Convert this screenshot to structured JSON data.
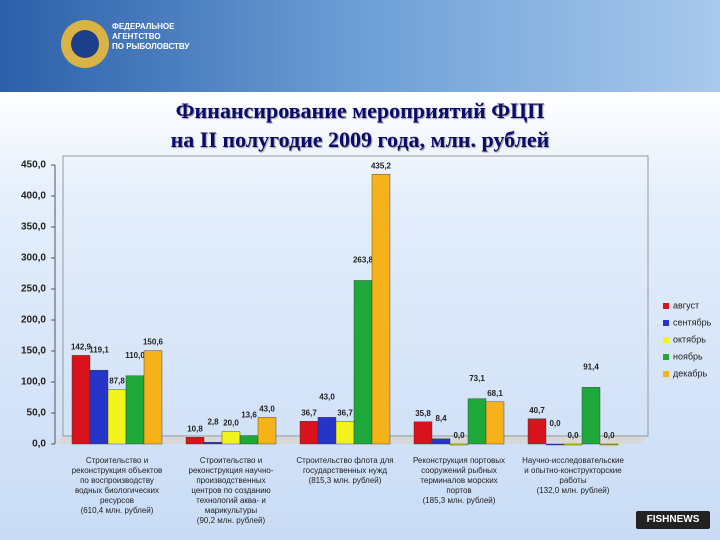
{
  "header": {
    "agency": "ФЕДЕРАЛЬНОЕ\nАГЕНТСТВО\nПО РЫБОЛОВСТВУ",
    "badge": "FISHNEWS"
  },
  "chart_data": {
    "type": "bar",
    "title": "Финансирование мероприятий ФЦП\nна II полугодие 2009 года, млн. рублей",
    "categories": [
      "Строительство и\nреконструкция объектов\nпо воспроизводству\nводных биологических\nресурсов\n(610,4 млн. рублей)",
      "Строительство и\nреконструкция научно-\nпроизводственных\nцентров по созданию\nтехнологий аква- и\nмарикультуры\n(90,2 млн. рублей)",
      "Строительство флота для\nгосударственных нужд\n(815,3 млн. рублей)",
      "Реконструкция портовых\nсооружений рыбных\nтерминалов морских\nпортов\n(185,3 млн. рублей)",
      "Научно-исследовательские\nи опытно-конструкторские\nработы\n(132,0 млн. рублей)"
    ],
    "series": [
      {
        "name": "август",
        "color": "#d9131b",
        "values": [
          142.9,
          10.8,
          36.7,
          35.8,
          40.7
        ],
        "value_labels": [
          "142,9",
          "10,8",
          "36,7",
          "35,8",
          "40,7"
        ]
      },
      {
        "name": "сентябрь",
        "color": "#2634c8",
        "values": [
          119.1,
          2.8,
          43.0,
          8.4,
          0.0
        ],
        "value_labels": [
          "119,1",
          "2,8",
          "43,0",
          "8,4",
          "0,0"
        ]
      },
      {
        "name": "октябрь",
        "color": "#f2f21c",
        "values": [
          87.8,
          20.0,
          36.7,
          0.0,
          0.0
        ],
        "value_labels": [
          "87,8",
          "20,0",
          "36,7",
          "0,0",
          "0,0"
        ]
      },
      {
        "name": "ноябрь",
        "color": "#1fa83a",
        "values": [
          110.0,
          13.6,
          263.8,
          73.1,
          91.4
        ],
        "value_labels": [
          "110,0",
          "13,6",
          "263,8",
          "73,1",
          "91,4"
        ]
      },
      {
        "name": "декабрь",
        "color": "#f5b21a",
        "values": [
          150.6,
          43.0,
          435.2,
          68.1,
          0.0
        ],
        "value_labels": [
          "150,6",
          "43,0",
          "435,2",
          "68,1",
          "0,0"
        ]
      }
    ],
    "ylim": [
      0,
      450
    ],
    "yticks": [
      {
        "value": 0,
        "label": "0,0"
      },
      {
        "value": 50,
        "label": "50,0"
      },
      {
        "value": 100,
        "label": "100,0"
      },
      {
        "value": 150,
        "label": "150,0"
      },
      {
        "value": 200,
        "label": "200,0"
      },
      {
        "value": 250,
        "label": "250,0"
      },
      {
        "value": 300,
        "label": "300,0"
      },
      {
        "value": 350,
        "label": "350,0"
      },
      {
        "value": 400,
        "label": "400,0"
      },
      {
        "value": 450,
        "label": "450,0"
      }
    ],
    "grid": false,
    "legend": "right"
  }
}
